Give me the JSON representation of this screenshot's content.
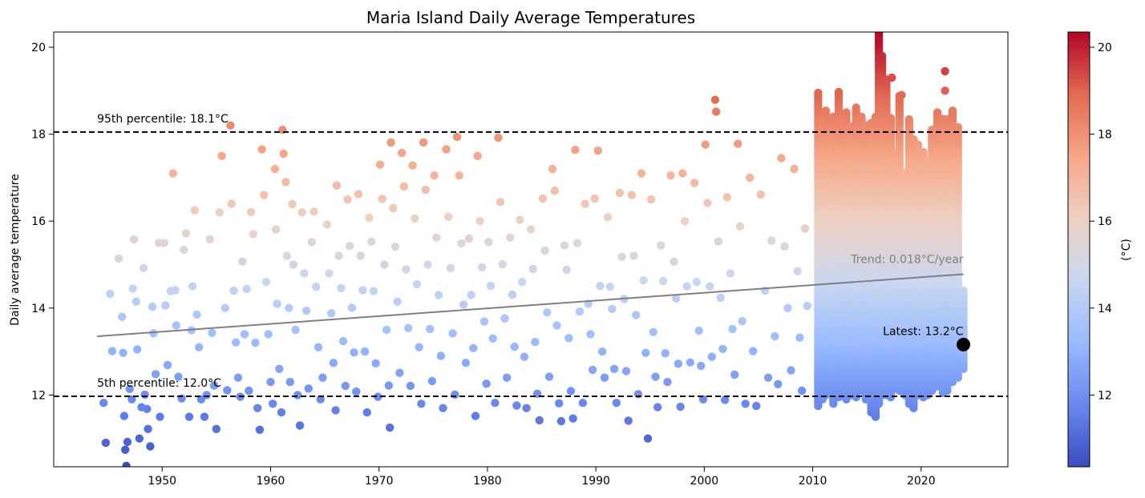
{
  "chart_data": {
    "type": "scatter",
    "title": "Maria Island Daily Average Temperatures",
    "ylabel": "Daily average temperature",
    "xlabel": "",
    "xlim": [
      1940.0,
      2028.0
    ],
    "ylim": [
      10.35,
      20.35
    ],
    "x_ticks": [
      1950,
      1960,
      1970,
      1980,
      1990,
      2000,
      2010,
      2020
    ],
    "y_ticks": [
      12,
      14,
      16,
      18,
      20
    ],
    "grid": false,
    "colorbar": {
      "label": "(°C)",
      "range": [
        10.35,
        20.35
      ],
      "ticks": [
        12,
        14,
        16,
        18,
        20
      ],
      "colormap": "coolwarm",
      "stops": [
        "#3b4cc0",
        "#6788ee",
        "#9abbff",
        "#c9d7f0",
        "#edd1c2",
        "#f7a889",
        "#e26952",
        "#b40426"
      ]
    },
    "reference_lines": [
      {
        "name": "95th percentile",
        "value": 18.05,
        "label": "95th percentile: 18.1°C",
        "style": "dashed",
        "color": "#000000"
      },
      {
        "name": "5th percentile",
        "value": 11.97,
        "label": "5th percentile: 12.0°C",
        "style": "dashed",
        "color": "#000000"
      }
    ],
    "trend": {
      "label": "Trend: 0.018°C/year",
      "x": [
        1944.0,
        2023.9
      ],
      "y": [
        13.35,
        14.78
      ],
      "color": "#808080"
    },
    "latest": {
      "label": "Latest: 13.2°C",
      "x": 2023.9,
      "y": 13.16,
      "color": "#000000"
    },
    "points": [
      [
        1944.6,
        11.82
      ],
      [
        1944.8,
        10.9
      ],
      [
        1945.2,
        14.33
      ],
      [
        1945.4,
        13.01
      ],
      [
        1946.0,
        15.14
      ],
      [
        1946.3,
        13.8
      ],
      [
        1946.4,
        12.97
      ],
      [
        1946.5,
        11.52
      ],
      [
        1946.6,
        10.74
      ],
      [
        1946.7,
        10.37
      ],
      [
        1946.8,
        10.92
      ],
      [
        1947.0,
        12.14
      ],
      [
        1947.2,
        11.9
      ],
      [
        1947.3,
        14.45
      ],
      [
        1947.4,
        15.58
      ],
      [
        1947.6,
        14.15
      ],
      [
        1947.7,
        13.05
      ],
      [
        1947.9,
        11.0
      ],
      [
        1948.1,
        11.72
      ],
      [
        1948.3,
        14.92
      ],
      [
        1948.4,
        12.01
      ],
      [
        1948.6,
        11.68
      ],
      [
        1948.7,
        11.22
      ],
      [
        1948.9,
        10.82
      ],
      [
        1949.1,
        14.03
      ],
      [
        1949.2,
        13.42
      ],
      [
        1949.4,
        12.48
      ],
      [
        1949.7,
        15.5
      ],
      [
        1949.8,
        11.5
      ],
      [
        1950.2,
        15.5
      ],
      [
        1950.3,
        14.06
      ],
      [
        1950.5,
        12.69
      ],
      [
        1950.8,
        14.39
      ],
      [
        1951.0,
        17.1
      ],
      [
        1951.2,
        14.41
      ],
      [
        1951.3,
        13.6
      ],
      [
        1951.5,
        12.42
      ],
      [
        1951.8,
        11.92
      ],
      [
        1952.0,
        15.34
      ],
      [
        1952.2,
        15.72
      ],
      [
        1952.5,
        11.5
      ],
      [
        1952.7,
        13.49
      ],
      [
        1952.8,
        14.5
      ],
      [
        1953.0,
        16.25
      ],
      [
        1953.2,
        13.85
      ],
      [
        1953.4,
        13.1
      ],
      [
        1953.6,
        11.9
      ],
      [
        1953.9,
        11.5
      ],
      [
        1954.1,
        12.0
      ],
      [
        1954.4,
        15.58
      ],
      [
        1954.6,
        13.43
      ],
      [
        1954.8,
        12.22
      ],
      [
        1955.0,
        11.22
      ],
      [
        1955.3,
        16.2
      ],
      [
        1955.5,
        17.5
      ],
      [
        1955.8,
        14.0
      ],
      [
        1956.0,
        12.11
      ],
      [
        1956.3,
        18.2
      ],
      [
        1956.4,
        16.4
      ],
      [
        1956.6,
        14.4
      ],
      [
        1956.8,
        13.21
      ],
      [
        1957.0,
        12.4
      ],
      [
        1957.2,
        11.96
      ],
      [
        1957.4,
        15.07
      ],
      [
        1957.6,
        13.4
      ],
      [
        1957.8,
        14.44
      ],
      [
        1958.0,
        12.1
      ],
      [
        1958.2,
        16.21
      ],
      [
        1958.4,
        15.7
      ],
      [
        1958.6,
        13.2
      ],
      [
        1958.8,
        11.7
      ],
      [
        1959.0,
        11.2
      ],
      [
        1959.2,
        17.65
      ],
      [
        1959.4,
        16.6
      ],
      [
        1959.6,
        14.6
      ],
      [
        1959.8,
        13.4
      ],
      [
        1960.0,
        12.3
      ],
      [
        1960.2,
        11.8
      ],
      [
        1960.4,
        17.2
      ],
      [
        1960.5,
        15.81
      ],
      [
        1960.6,
        14.1
      ],
      [
        1960.8,
        12.6
      ],
      [
        1961.0,
        11.6
      ],
      [
        1961.1,
        18.1
      ],
      [
        1961.2,
        17.55
      ],
      [
        1961.4,
        16.9
      ],
      [
        1961.5,
        15.2
      ],
      [
        1961.7,
        14.0
      ],
      [
        1961.8,
        12.3
      ],
      [
        1962.0,
        16.39
      ],
      [
        1962.1,
        15.0
      ],
      [
        1962.3,
        13.5
      ],
      [
        1962.5,
        12.0
      ],
      [
        1962.7,
        11.3
      ],
      [
        1962.9,
        16.2
      ],
      [
        1963.1,
        14.8
      ],
      [
        1963.3,
        13.94
      ],
      [
        1963.5,
        12.15
      ],
      [
        1963.8,
        15.52
      ],
      [
        1964.0,
        16.22
      ],
      [
        1964.2,
        14.49
      ],
      [
        1964.4,
        13.1
      ],
      [
        1964.6,
        11.9
      ],
      [
        1964.8,
        12.4
      ],
      [
        1965.2,
        15.92
      ],
      [
        1965.4,
        14.8
      ],
      [
        1965.6,
        13.88
      ],
      [
        1965.8,
        12.74
      ],
      [
        1966.0,
        11.65
      ],
      [
        1966.1,
        16.82
      ],
      [
        1966.3,
        15.2
      ],
      [
        1966.5,
        14.46
      ],
      [
        1966.7,
        13.24
      ],
      [
        1966.9,
        12.21
      ],
      [
        1967.1,
        16.5
      ],
      [
        1967.3,
        15.43
      ],
      [
        1967.5,
        14.01
      ],
      [
        1967.7,
        12.98
      ],
      [
        1967.9,
        12.08
      ],
      [
        1968.1,
        16.62
      ],
      [
        1968.3,
        15.2
      ],
      [
        1968.5,
        14.41
      ],
      [
        1968.7,
        13.0
      ],
      [
        1968.9,
        11.6
      ],
      [
        1969.1,
        16.08
      ],
      [
        1969.3,
        15.53
      ],
      [
        1969.5,
        14.39
      ],
      [
        1969.7,
        12.73
      ],
      [
        1969.9,
        11.96
      ],
      [
        1970.1,
        17.3
      ],
      [
        1970.3,
        16.51
      ],
      [
        1970.5,
        15.0
      ],
      [
        1970.7,
        13.5
      ],
      [
        1970.9,
        12.22
      ],
      [
        1971.0,
        11.25
      ],
      [
        1971.1,
        17.81
      ],
      [
        1971.3,
        16.3
      ],
      [
        1971.5,
        15.41
      ],
      [
        1971.7,
        14.15
      ],
      [
        1971.9,
        12.51
      ],
      [
        1972.1,
        17.57
      ],
      [
        1972.3,
        16.8
      ],
      [
        1972.5,
        14.89
      ],
      [
        1972.7,
        13.54
      ],
      [
        1972.9,
        12.21
      ],
      [
        1973.1,
        17.28
      ],
      [
        1973.3,
        16.06
      ],
      [
        1973.5,
        14.55
      ],
      [
        1973.7,
        13.1
      ],
      [
        1973.9,
        11.8
      ],
      [
        1974.1,
        17.81
      ],
      [
        1974.3,
        16.72
      ],
      [
        1974.5,
        15.0
      ],
      [
        1974.7,
        13.52
      ],
      [
        1974.9,
        12.32
      ],
      [
        1975.1,
        17.05
      ],
      [
        1975.3,
        15.62
      ],
      [
        1975.5,
        14.3
      ],
      [
        1975.7,
        12.9
      ],
      [
        1975.9,
        11.7
      ],
      [
        1976.2,
        17.65
      ],
      [
        1976.4,
        16.1
      ],
      [
        1976.6,
        14.92
      ],
      [
        1976.8,
        13.42
      ],
      [
        1977.0,
        12.01
      ],
      [
        1977.2,
        17.94
      ],
      [
        1977.4,
        17.05
      ],
      [
        1977.6,
        15.49
      ],
      [
        1977.8,
        14.08
      ],
      [
        1978.0,
        12.74
      ],
      [
        1978.3,
        15.6
      ],
      [
        1978.5,
        14.3
      ],
      [
        1978.7,
        13.08
      ],
      [
        1978.9,
        11.52
      ],
      [
        1979.1,
        17.5
      ],
      [
        1979.3,
        16.0
      ],
      [
        1979.5,
        14.94
      ],
      [
        1979.7,
        13.69
      ],
      [
        1979.9,
        12.26
      ],
      [
        1980.1,
        15.52
      ],
      [
        1980.3,
        14.51
      ],
      [
        1980.5,
        13.3
      ],
      [
        1980.7,
        11.82
      ],
      [
        1981.0,
        17.92
      ],
      [
        1981.2,
        16.44
      ],
      [
        1981.4,
        15.01
      ],
      [
        1981.6,
        13.76
      ],
      [
        1981.8,
        12.4
      ],
      [
        1982.1,
        15.62
      ],
      [
        1982.3,
        14.31
      ],
      [
        1982.5,
        13.11
      ],
      [
        1982.7,
        11.76
      ],
      [
        1983.0,
        16.03
      ],
      [
        1983.2,
        14.6
      ],
      [
        1983.4,
        12.88
      ],
      [
        1983.6,
        11.7
      ],
      [
        1984.0,
        15.81
      ],
      [
        1984.2,
        14.9
      ],
      [
        1984.4,
        13.22
      ],
      [
        1984.6,
        12.03
      ],
      [
        1984.8,
        11.42
      ],
      [
        1985.1,
        16.52
      ],
      [
        1985.3,
        15.32
      ],
      [
        1985.5,
        13.9
      ],
      [
        1985.7,
        12.42
      ],
      [
        1986.0,
        17.2
      ],
      [
        1986.2,
        16.7
      ],
      [
        1986.4,
        13.6
      ],
      [
        1986.6,
        11.81
      ],
      [
        1986.8,
        11.4
      ],
      [
        1987.1,
        15.44
      ],
      [
        1987.3,
        14.88
      ],
      [
        1987.5,
        13.31
      ],
      [
        1987.7,
        12.09
      ],
      [
        1987.9,
        11.46
      ],
      [
        1988.1,
        17.64
      ],
      [
        1988.3,
        15.5
      ],
      [
        1988.5,
        13.92
      ],
      [
        1988.8,
        11.82
      ],
      [
        1989.0,
        16.4
      ],
      [
        1989.3,
        14.1
      ],
      [
        1989.5,
        13.4
      ],
      [
        1989.7,
        12.58
      ],
      [
        1989.9,
        16.52
      ],
      [
        1990.2,
        17.62
      ],
      [
        1990.4,
        14.51
      ],
      [
        1990.6,
        13.0
      ],
      [
        1990.8,
        12.4
      ],
      [
        1991.1,
        16.09
      ],
      [
        1991.3,
        14.49
      ],
      [
        1991.5,
        13.98
      ],
      [
        1991.7,
        12.6
      ],
      [
        1991.9,
        11.82
      ],
      [
        1992.2,
        16.65
      ],
      [
        1992.4,
        15.18
      ],
      [
        1992.6,
        14.21
      ],
      [
        1992.8,
        12.55
      ],
      [
        1993.0,
        11.41
      ],
      [
        1993.3,
        16.6
      ],
      [
        1993.5,
        15.2
      ],
      [
        1993.7,
        13.84
      ],
      [
        1993.9,
        12.02
      ],
      [
        1994.2,
        17.1
      ],
      [
        1994.4,
        14.64
      ],
      [
        1994.6,
        12.97
      ],
      [
        1994.8,
        11.0
      ],
      [
        1995.1,
        16.5
      ],
      [
        1995.3,
        13.45
      ],
      [
        1995.5,
        12.42
      ],
      [
        1995.7,
        11.72
      ],
      [
        1996.0,
        15.44
      ],
      [
        1996.2,
        14.62
      ],
      [
        1996.4,
        12.96
      ],
      [
        1996.6,
        12.3
      ],
      [
        1996.9,
        17.05
      ],
      [
        1997.2,
        15.07
      ],
      [
        1997.4,
        14.22
      ],
      [
        1997.6,
        12.72
      ],
      [
        1997.8,
        11.73
      ],
      [
        1998.0,
        17.1
      ],
      [
        1998.2,
        16.0
      ],
      [
        1998.4,
        14.5
      ],
      [
        1998.7,
        12.75
      ],
      [
        1999.1,
        16.88
      ],
      [
        1999.3,
        14.6
      ],
      [
        1999.5,
        13.48
      ],
      [
        1999.7,
        12.67
      ],
      [
        1999.9,
        11.9
      ],
      [
        2000.1,
        17.76
      ],
      [
        2000.3,
        16.42
      ],
      [
        2000.5,
        14.5
      ],
      [
        2000.7,
        12.88
      ],
      [
        2001.0,
        18.79
      ],
      [
        2001.1,
        18.52
      ],
      [
        2001.3,
        15.53
      ],
      [
        2001.5,
        14.24
      ],
      [
        2001.7,
        13.06
      ],
      [
        2001.9,
        11.89
      ],
      [
        2002.1,
        16.55
      ],
      [
        2002.4,
        14.8
      ],
      [
        2002.6,
        13.52
      ],
      [
        2002.8,
        12.47
      ],
      [
        2003.1,
        17.78
      ],
      [
        2003.3,
        15.88
      ],
      [
        2003.5,
        13.7
      ],
      [
        2003.8,
        11.8
      ],
      [
        2004.2,
        17.0
      ],
      [
        2004.5,
        13.01
      ],
      [
        2004.8,
        11.75
      ],
      [
        2005.2,
        16.61
      ],
      [
        2005.6,
        14.4
      ],
      [
        2005.9,
        12.4
      ],
      [
        2006.2,
        15.55
      ],
      [
        2006.5,
        13.35
      ],
      [
        2006.8,
        12.25
      ],
      [
        2007.1,
        17.45
      ],
      [
        2007.4,
        15.42
      ],
      [
        2007.7,
        14.0
      ],
      [
        2008.0,
        12.57
      ],
      [
        2008.3,
        17.2
      ],
      [
        2008.6,
        14.85
      ],
      [
        2008.8,
        13.32
      ],
      [
        2009.0,
        12.1
      ],
      [
        2009.3,
        15.83
      ],
      [
        2009.5,
        14.05
      ]
    ],
    "columns": [
      [
        2010.5,
        11.75,
        18.95
      ],
      [
        2010.9,
        11.9,
        18.25
      ],
      [
        2011.2,
        12.0,
        18.55
      ],
      [
        2011.6,
        12.1,
        17.0
      ],
      [
        2011.9,
        11.8,
        18.45
      ],
      [
        2012.4,
        11.95,
        19.0
      ],
      [
        2012.7,
        12.1,
        18.2
      ],
      [
        2013.1,
        11.9,
        18.55
      ],
      [
        2013.5,
        12.0,
        18.2
      ],
      [
        2014.0,
        11.95,
        18.65
      ],
      [
        2014.5,
        12.1,
        18.4
      ],
      [
        2014.9,
        11.9,
        18.25
      ],
      [
        2015.4,
        11.6,
        18.3
      ],
      [
        2015.8,
        11.5,
        18.4
      ],
      [
        2016.1,
        11.8,
        20.35
      ],
      [
        2016.4,
        12.0,
        19.8
      ],
      [
        2016.8,
        12.0,
        19.3
      ],
      [
        2017.2,
        11.95,
        18.4
      ],
      [
        2017.6,
        12.15,
        17.6
      ],
      [
        2018.0,
        12.1,
        18.9
      ],
      [
        2018.5,
        12.0,
        17.1
      ],
      [
        2018.9,
        11.8,
        18.35
      ],
      [
        2019.3,
        11.7,
        17.9
      ],
      [
        2019.7,
        12.0,
        17.8
      ],
      [
        2020.2,
        11.95,
        17.6
      ],
      [
        2020.6,
        12.0,
        17.4
      ],
      [
        2021.0,
        12.1,
        18.1
      ],
      [
        2021.5,
        12.2,
        18.5
      ],
      [
        2022.0,
        12.05,
        18.4
      ],
      [
        2022.4,
        12.1,
        18.35
      ],
      [
        2022.9,
        12.3,
        18.55
      ],
      [
        2023.4,
        12.4,
        18.2
      ],
      [
        2023.9,
        12.6,
        14.4
      ]
    ],
    "extra_points": [
      [
        2022.2,
        19.45
      ],
      [
        2022.2,
        19.0
      ],
      [
        2016.1,
        20.15
      ],
      [
        2016.1,
        19.75
      ],
      [
        2018.2,
        18.9
      ],
      [
        2017.3,
        19.3
      ]
    ]
  }
}
